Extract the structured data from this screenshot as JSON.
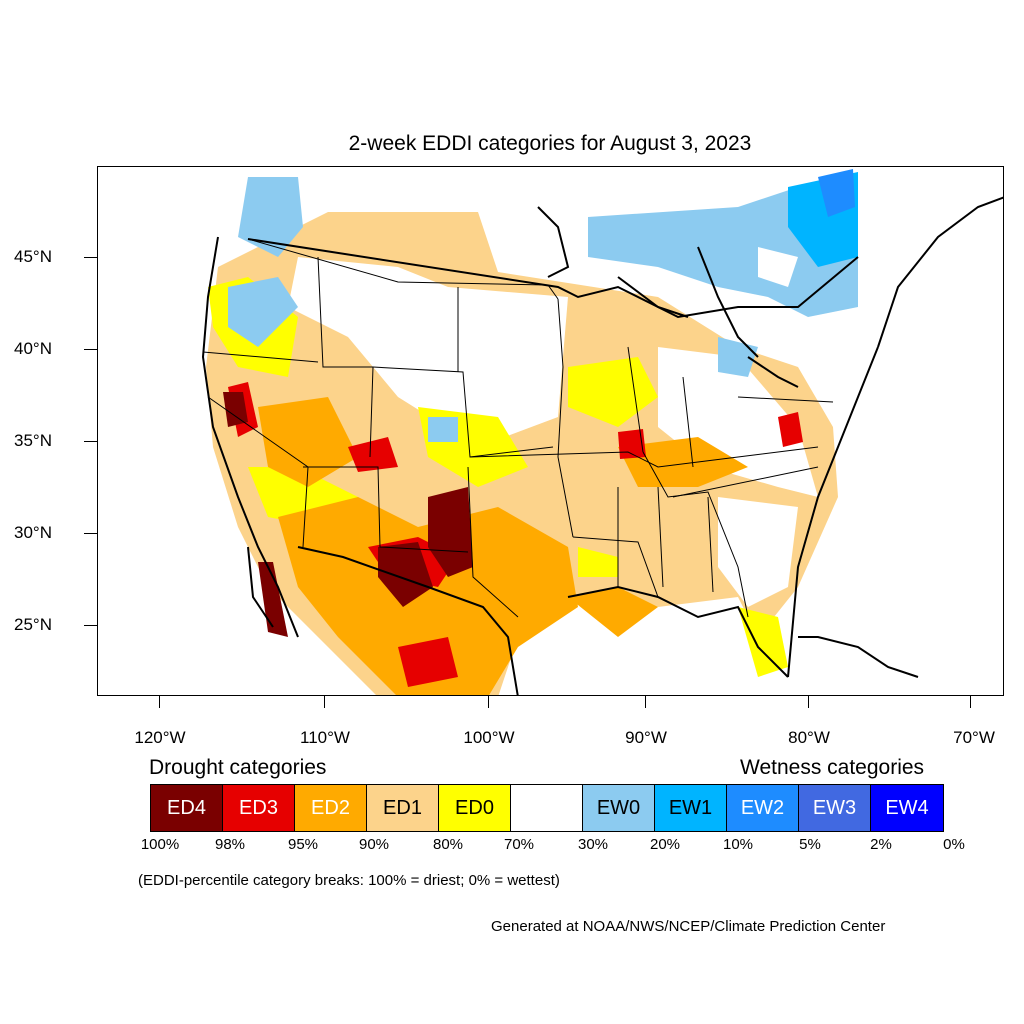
{
  "title": "2-week EDDI categories for August 3, 2023",
  "latitude_labels": [
    "45°N",
    "40°N",
    "35°N",
    "30°N",
    "25°N"
  ],
  "longitude_labels": [
    "120°W",
    "110°W",
    "100°W",
    "90°W",
    "80°W",
    "70°W"
  ],
  "legend": {
    "drought_heading": "Drought categories",
    "wetness_heading": "Wetness categories",
    "categories": [
      {
        "label": "ED4",
        "color": "#7a0000",
        "text_color": "#ffffff"
      },
      {
        "label": "ED3",
        "color": "#e60000",
        "text_color": "#ffffff"
      },
      {
        "label": "ED2",
        "color": "#ffaa00",
        "text_color": "#ffffff"
      },
      {
        "label": "ED1",
        "color": "#fcd38b",
        "text_color": "#000000"
      },
      {
        "label": "ED0",
        "color": "#ffff00",
        "text_color": "#000000"
      },
      {
        "label": "",
        "color": "#ffffff",
        "text_color": "#000000"
      },
      {
        "label": "EW0",
        "color": "#8ccbf0",
        "text_color": "#000000"
      },
      {
        "label": "EW1",
        "color": "#00b4ff",
        "text_color": "#000000"
      },
      {
        "label": "EW2",
        "color": "#1e8cff",
        "text_color": "#ffffff"
      },
      {
        "label": "EW3",
        "color": "#4169e1",
        "text_color": "#ffffff"
      },
      {
        "label": "EW4",
        "color": "#0000ff",
        "text_color": "#ffffff"
      }
    ],
    "percentiles": [
      "100%",
      "98%",
      "95%",
      "90%",
      "80%",
      "70%",
      "30%",
      "20%",
      "10%",
      "5%",
      "2%",
      "0%"
    ]
  },
  "note": "(EDDI-percentile category breaks: 100% = driest; 0% = wettest)",
  "credit": "Generated at NOAA/NWS/NCEP/Climate Prediction Center"
}
